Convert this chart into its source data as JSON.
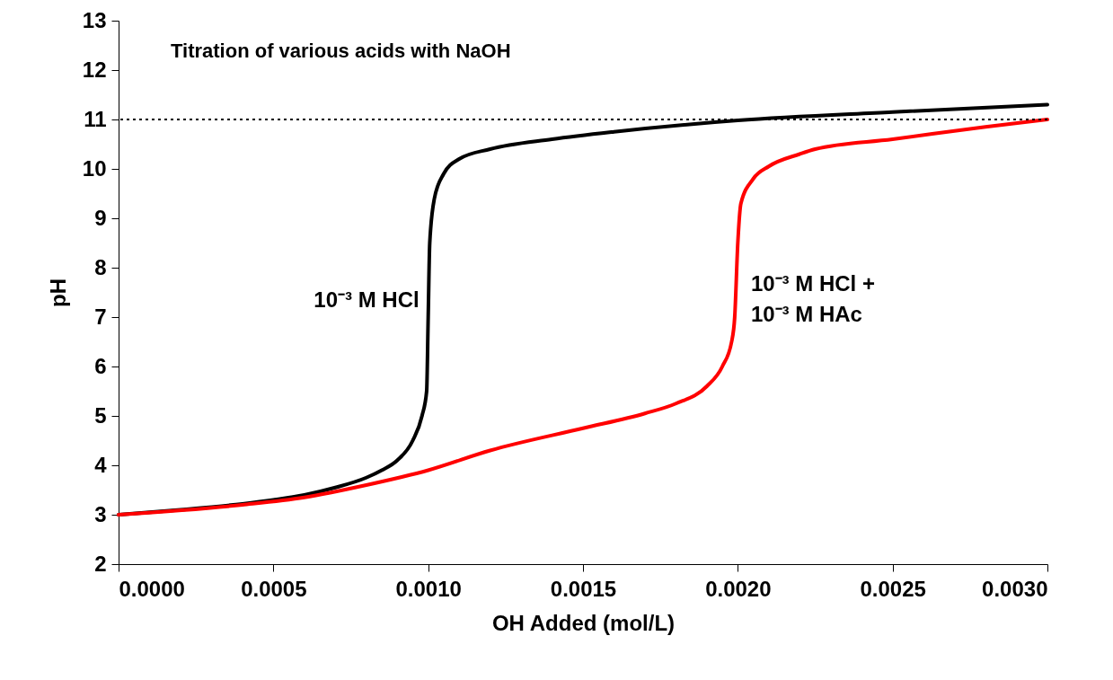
{
  "chart_data": {
    "type": "line",
    "title": "Titration of various acids with NaOH",
    "xlabel": "OH Added (mol/L)",
    "ylabel": "pH",
    "xlim": [
      0,
      0.003
    ],
    "ylim": [
      2,
      13
    ],
    "xticks": [
      {
        "value": 0,
        "label": "0.0000"
      },
      {
        "value": 0.0005,
        "label": "0.0005"
      },
      {
        "value": 0.001,
        "label": "0.0010"
      },
      {
        "value": 0.0015,
        "label": "0.0015"
      },
      {
        "value": 0.002,
        "label": "0.0020"
      },
      {
        "value": 0.0025,
        "label": "0.0025"
      },
      {
        "value": 0.003,
        "label": "0.0030"
      }
    ],
    "yticks": [
      2,
      3,
      4,
      5,
      6,
      7,
      8,
      9,
      10,
      11,
      12,
      13
    ],
    "grid": false,
    "line_style": "solid",
    "series": [
      {
        "name": "10⁻³ M HCl",
        "color": "#000000",
        "x": [
          0,
          0.0002,
          0.0004,
          0.0005,
          0.0006,
          0.0007,
          0.0008,
          0.00085,
          0.0009,
          0.00095,
          0.00098,
          0.000995,
          0.001,
          0.001005,
          0.00102,
          0.00105,
          0.0011,
          0.0012,
          0.0014,
          0.0016,
          0.002,
          0.0025,
          0.003
        ],
        "values": [
          3.0,
          3.1,
          3.22,
          3.3,
          3.4,
          3.55,
          3.75,
          3.9,
          4.1,
          4.5,
          5.0,
          5.5,
          7.0,
          8.5,
          9.4,
          9.9,
          10.2,
          10.4,
          10.6,
          10.75,
          10.98,
          11.15,
          11.3
        ]
      },
      {
        "name": "10⁻³ M HCl +\n10⁻³ M HAc",
        "color": "#ff0000",
        "x": [
          0,
          0.0004,
          0.0006,
          0.0008,
          0.001,
          0.0012,
          0.0015,
          0.0017,
          0.0018,
          0.0019,
          0.00195,
          0.00198,
          0.00199,
          0.002,
          0.00201,
          0.00205,
          0.0021,
          0.0022,
          0.00225,
          0.0025,
          0.0028,
          0.003
        ],
        "values": [
          3.0,
          3.2,
          3.35,
          3.6,
          3.9,
          4.3,
          4.75,
          5.05,
          5.25,
          5.6,
          6.0,
          6.5,
          7.0,
          8.5,
          9.3,
          9.8,
          10.05,
          10.3,
          10.4,
          10.6,
          10.85,
          11.0
        ]
      }
    ],
    "ref_lines": [
      {
        "axis": "y",
        "value": 11,
        "color": "#000000",
        "line_style": "dotted"
      }
    ]
  }
}
